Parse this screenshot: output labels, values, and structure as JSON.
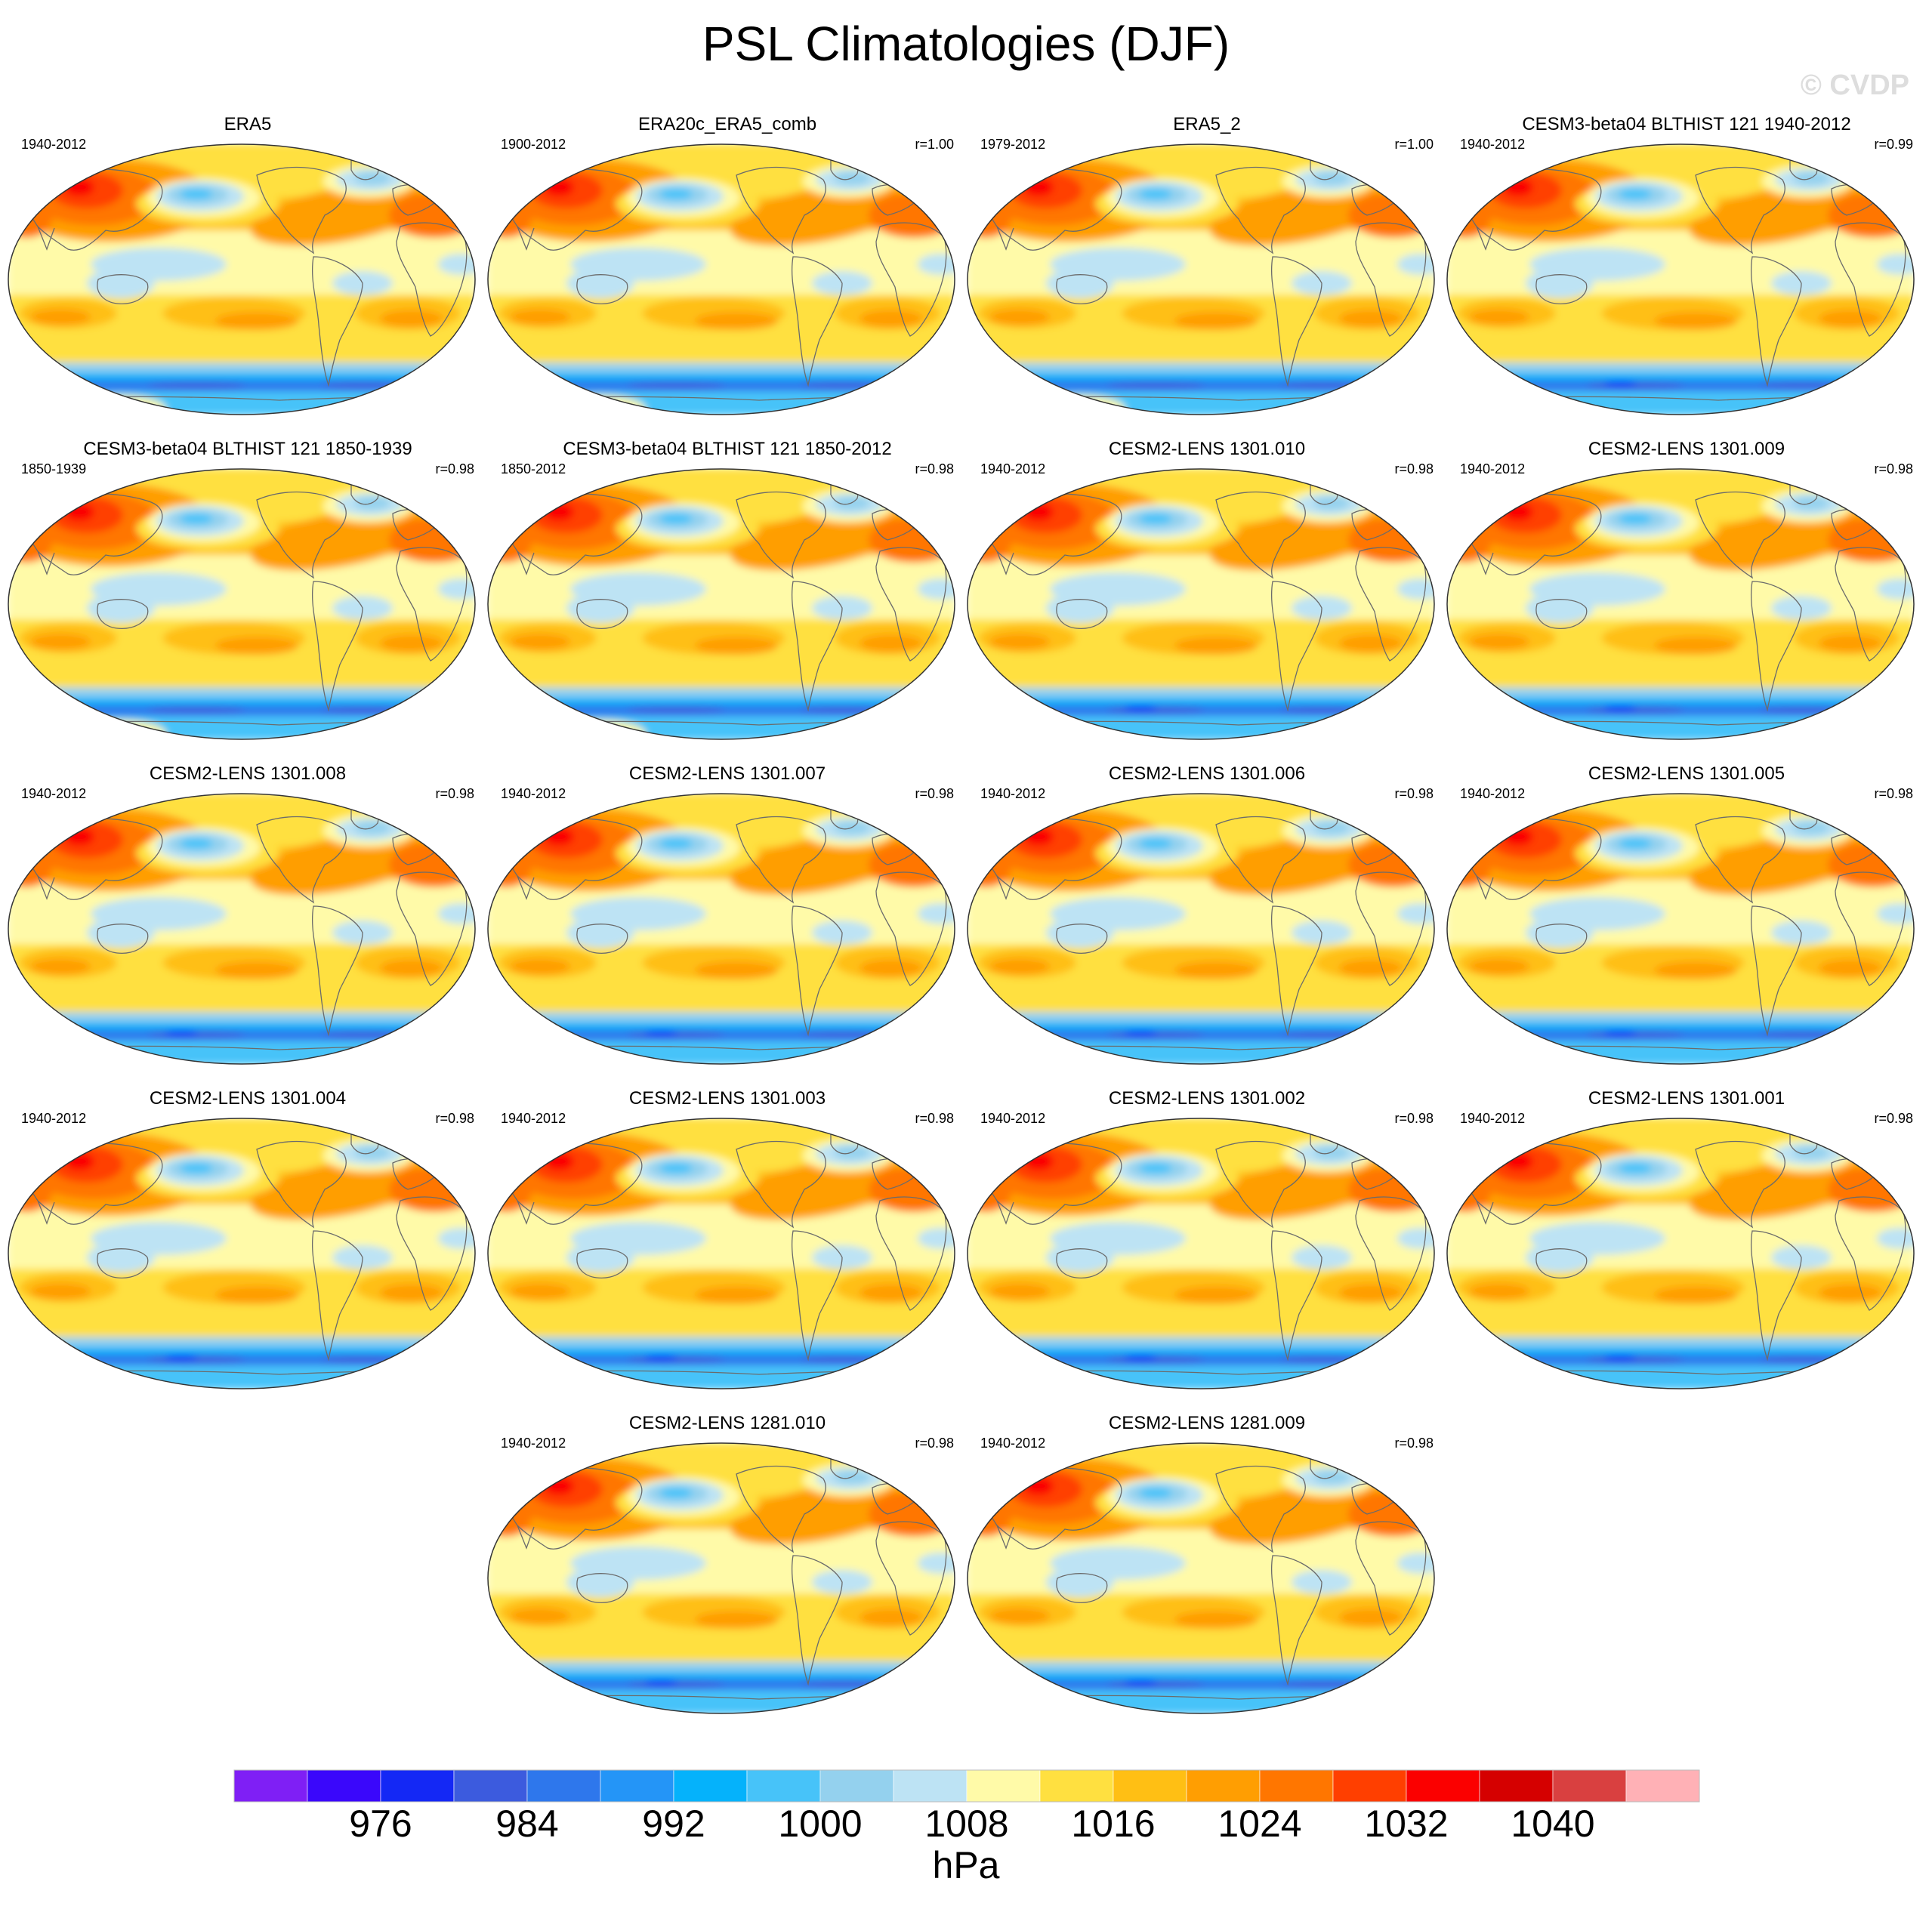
{
  "title": "PSL Climatologies (DJF)",
  "watermark": "© CVDP",
  "panels": [
    {
      "name": "ERA5",
      "years": "1940-2012",
      "corr": "",
      "antarctic_high": true
    },
    {
      "name": "ERA20c_ERA5_comb",
      "years": "1900-2012",
      "corr": "r=1.00",
      "antarctic_high": true
    },
    {
      "name": "ERA5_2",
      "years": "1979-2012",
      "corr": "r=1.00",
      "antarctic_high": true
    },
    {
      "name": "CESM3-beta04 BLTHIST 121 1940-2012",
      "years": "1940-2012",
      "corr": "r=0.99",
      "antarctic_high": false
    },
    {
      "name": "CESM3-beta04 BLTHIST 121 1850-1939",
      "years": "1850-1939",
      "corr": "r=0.98",
      "antarctic_high": true
    },
    {
      "name": "CESM3-beta04 BLTHIST 121 1850-2012",
      "years": "1850-2012",
      "corr": "r=0.98",
      "antarctic_high": true
    },
    {
      "name": "CESM2-LENS 1301.010",
      "years": "1940-2012",
      "corr": "r=0.98",
      "antarctic_high": false
    },
    {
      "name": "CESM2-LENS 1301.009",
      "years": "1940-2012",
      "corr": "r=0.98",
      "antarctic_high": false
    },
    {
      "name": "CESM2-LENS 1301.008",
      "years": "1940-2012",
      "corr": "r=0.98",
      "antarctic_high": false
    },
    {
      "name": "CESM2-LENS 1301.007",
      "years": "1940-2012",
      "corr": "r=0.98",
      "antarctic_high": false
    },
    {
      "name": "CESM2-LENS 1301.006",
      "years": "1940-2012",
      "corr": "r=0.98",
      "antarctic_high": false
    },
    {
      "name": "CESM2-LENS 1301.005",
      "years": "1940-2012",
      "corr": "r=0.98",
      "antarctic_high": false
    },
    {
      "name": "CESM2-LENS 1301.004",
      "years": "1940-2012",
      "corr": "r=0.98",
      "antarctic_high": false
    },
    {
      "name": "CESM2-LENS 1301.003",
      "years": "1940-2012",
      "corr": "r=0.98",
      "antarctic_high": false
    },
    {
      "name": "CESM2-LENS 1301.002",
      "years": "1940-2012",
      "corr": "r=0.98",
      "antarctic_high": false
    },
    {
      "name": "CESM2-LENS 1301.001",
      "years": "1940-2012",
      "corr": "r=0.98",
      "antarctic_high": false
    },
    {
      "name": "CESM2-LENS 1281.010",
      "years": "1940-2012",
      "corr": "r=0.98",
      "antarctic_high": false
    },
    {
      "name": "CESM2-LENS 1281.009",
      "years": "1940-2012",
      "corr": "r=0.98",
      "antarctic_high": false
    }
  ],
  "colorbar": {
    "colors": [
      "#7f1ff5",
      "#3a07fb",
      "#1428f5",
      "#3c5bde",
      "#2e77ec",
      "#2495f7",
      "#05b2fb",
      "#47c3f9",
      "#94d1ee",
      "#bde3f4",
      "#fffaa8",
      "#ffe040",
      "#ffbf14",
      "#ff9e02",
      "#ff7600",
      "#ff3f00",
      "#fb0000",
      "#d50000",
      "#d94040",
      "#ffb1b6"
    ],
    "tick_labels": [
      "976",
      "984",
      "992",
      "1000",
      "1008",
      "1016",
      "1024",
      "1032",
      "1040"
    ],
    "tick_positions": [
      2,
      4,
      6,
      8,
      10,
      12,
      14,
      16,
      18
    ],
    "units": "hPa"
  }
}
